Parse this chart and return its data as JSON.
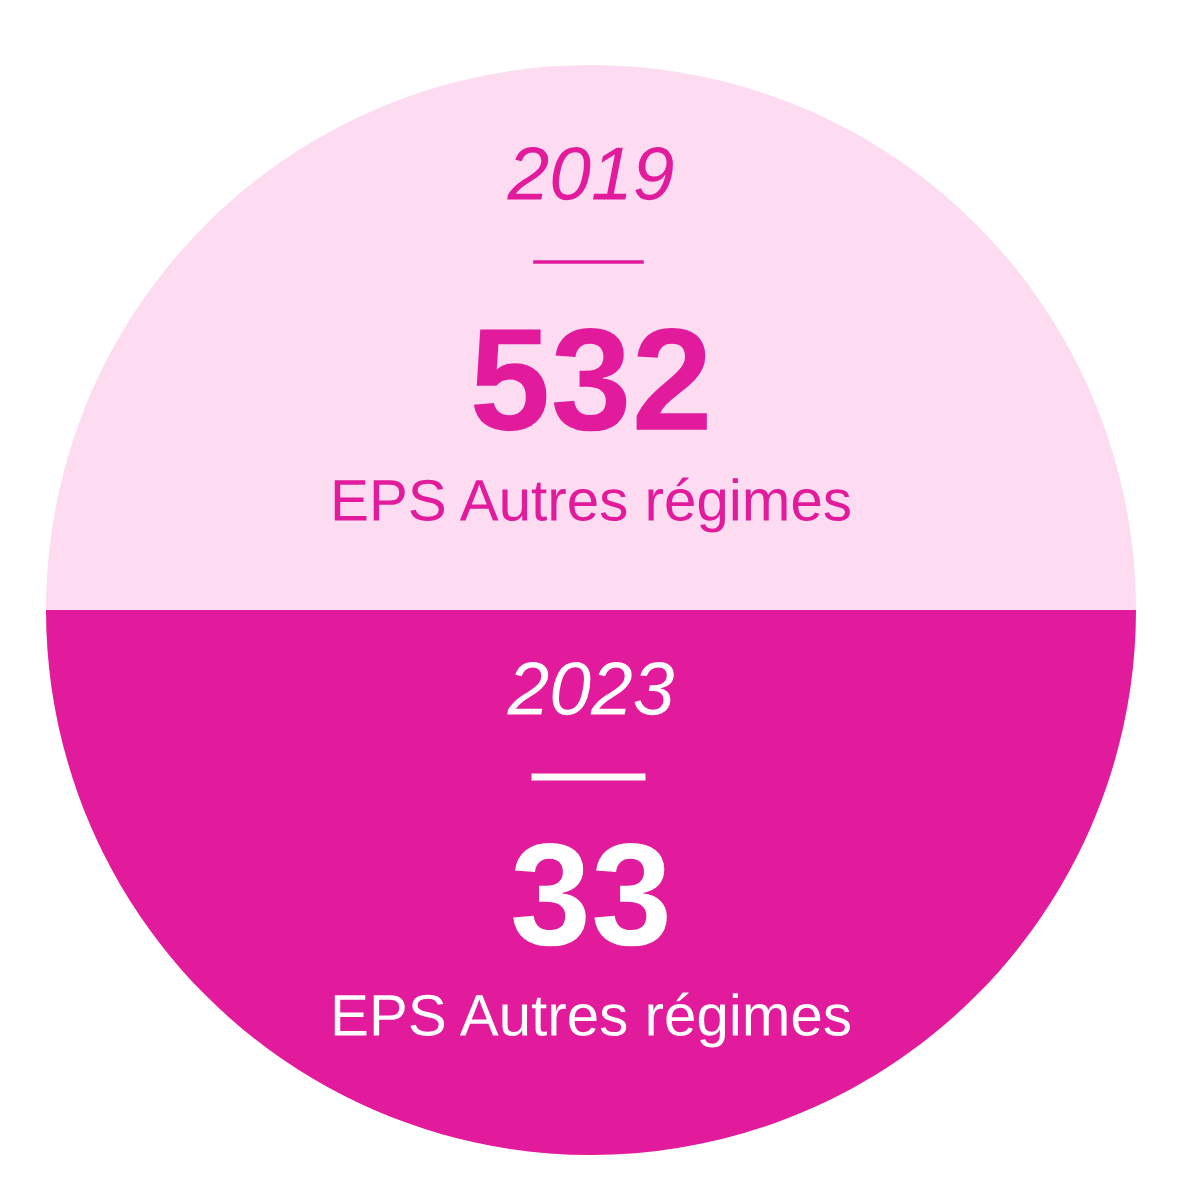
{
  "chart_data": {
    "type": "other",
    "categories": [
      "2019",
      "2023"
    ],
    "values": [
      532,
      33
    ],
    "colors": [
      "#fddcf2",
      "#e11b9b"
    ],
    "data_labels": true,
    "annotations": [
      "EPS Autres régimes",
      "EPS Autres régimes"
    ]
  }
}
